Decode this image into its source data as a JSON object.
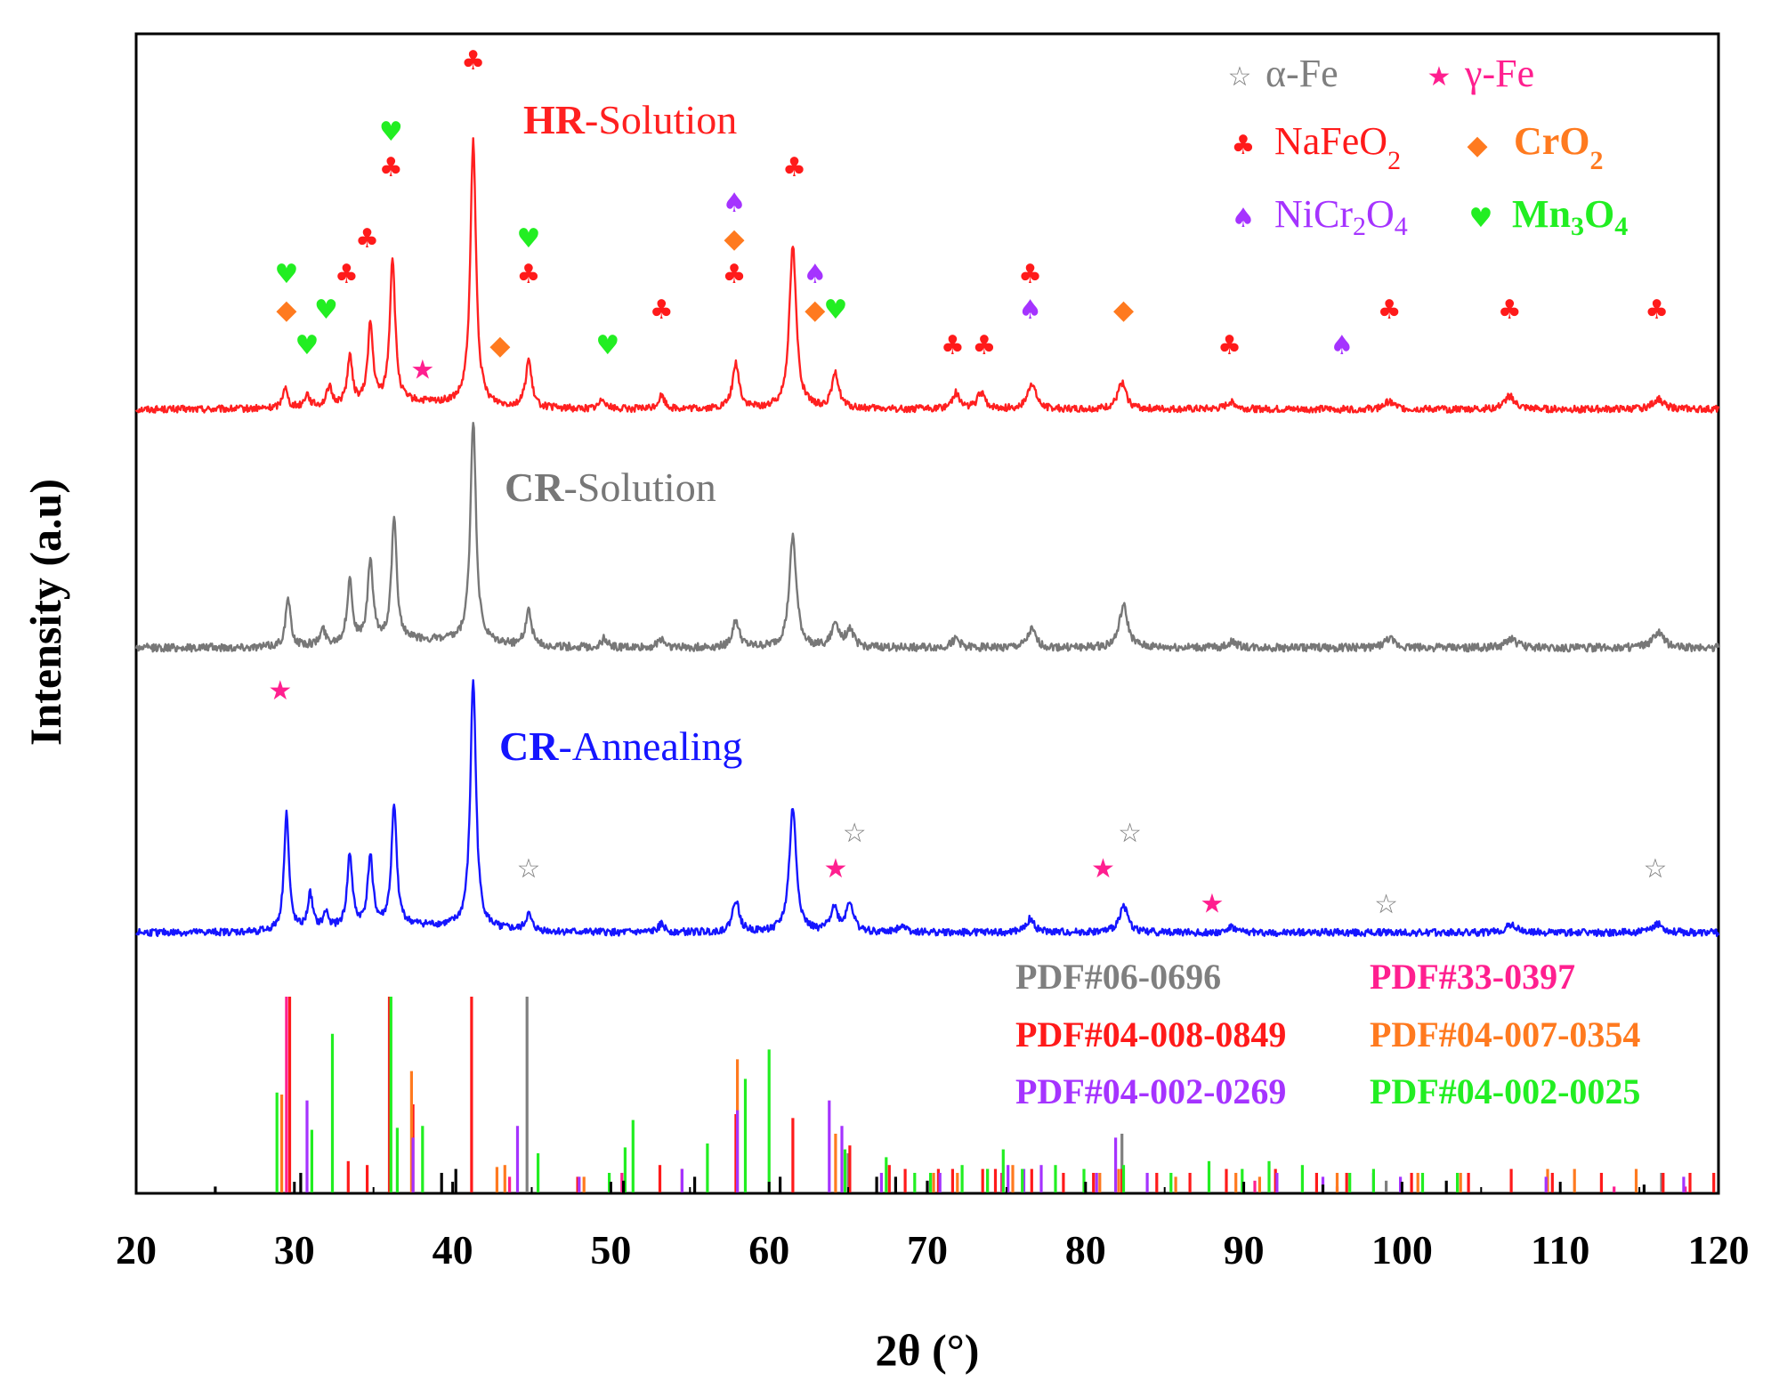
{
  "chart_data": {
    "type": "line",
    "xlabel": "2θ (°)",
    "ylabel": "Intensity (a.u)",
    "xlim": [
      20,
      120
    ],
    "xticks": [
      20,
      30,
      40,
      50,
      60,
      70,
      80,
      90,
      100,
      110,
      120
    ],
    "grid": false,
    "colors": {
      "alpha_fe": "#7f7f7f",
      "gamma_fe": "#ff1f8f",
      "nafeo2": "#ff1a1a",
      "cro2": "#ff7a1f",
      "nicr2o4": "#a533ff",
      "mn3o4": "#22ee22",
      "hr_solution": "#ff2020",
      "cr_solution": "#777777",
      "cr_annealing": "#1515ff",
      "baseline_ticks": "#000000"
    },
    "series": [
      {
        "name": "HR-Solution",
        "label_bold": "HR",
        "label_rest": "-Solution",
        "color": "#ff2020",
        "baseline": 0,
        "noise": 0.6,
        "peaks": [
          [
            29.4,
            8
          ],
          [
            30.8,
            5
          ],
          [
            32.2,
            7
          ],
          [
            33.5,
            18
          ],
          [
            34.8,
            30
          ],
          [
            36.2,
            55
          ],
          [
            41.3,
            100
          ],
          [
            44.8,
            18
          ],
          [
            49.5,
            4
          ],
          [
            53.2,
            5
          ],
          [
            57.9,
            17
          ],
          [
            61.5,
            62
          ],
          [
            64.2,
            13
          ],
          [
            71.8,
            6
          ],
          [
            73.4,
            6
          ],
          [
            76.6,
            10
          ],
          [
            82.3,
            10
          ],
          [
            89.2,
            3
          ],
          [
            99.2,
            3
          ],
          [
            106.8,
            5
          ],
          [
            116.2,
            4
          ]
        ]
      },
      {
        "name": "CR-Solution",
        "label_bold": "CR",
        "label_rest": "-Solution",
        "color": "#777777",
        "baseline": 0,
        "noise": 0.6,
        "peaks": [
          [
            29.6,
            16
          ],
          [
            31.8,
            5
          ],
          [
            33.5,
            21
          ],
          [
            34.8,
            27
          ],
          [
            36.3,
            40
          ],
          [
            41.3,
            74
          ],
          [
            44.8,
            12
          ],
          [
            49.6,
            3
          ],
          [
            53.2,
            3
          ],
          [
            57.9,
            9
          ],
          [
            61.5,
            37
          ],
          [
            64.2,
            8
          ],
          [
            65.1,
            6
          ],
          [
            71.8,
            3
          ],
          [
            76.6,
            6
          ],
          [
            82.4,
            14
          ],
          [
            89.3,
            2
          ],
          [
            99.2,
            3
          ],
          [
            106.9,
            3
          ],
          [
            116.2,
            5
          ]
        ]
      },
      {
        "name": "CR-Annealing",
        "label_bold": "CR",
        "label_rest": "-Annealing",
        "color": "#1515ff",
        "baseline": 0,
        "noise": 0.6,
        "peaks": [
          [
            29.5,
            44
          ],
          [
            31.0,
            13
          ],
          [
            32.0,
            6
          ],
          [
            33.5,
            27
          ],
          [
            34.8,
            26
          ],
          [
            36.3,
            44
          ],
          [
            41.3,
            92
          ],
          [
            44.8,
            6
          ],
          [
            53.2,
            3
          ],
          [
            57.9,
            12
          ],
          [
            61.5,
            46
          ],
          [
            64.1,
            9
          ],
          [
            65.1,
            11
          ],
          [
            68.4,
            3
          ],
          [
            76.5,
            5
          ],
          [
            82.4,
            10
          ],
          [
            89.2,
            2
          ],
          [
            106.9,
            3
          ],
          [
            116.2,
            3
          ]
        ]
      }
    ],
    "legend": {
      "placement": "top-right",
      "entries": [
        {
          "symbol": "☆",
          "label": "α-Fe",
          "color": "#7f7f7f",
          "bold": false
        },
        {
          "symbol": "★",
          "label": "γ-Fe",
          "color": "#ff1f8f",
          "bold": false
        },
        {
          "symbol": "♣",
          "label": "NaFeO2",
          "main": "NaFeO",
          "sub": "2",
          "rest": "",
          "color": "#ff1a1a",
          "bold": false
        },
        {
          "symbol": "◆",
          "label": "CrO2",
          "main": "CrO",
          "sub": "2",
          "rest": "",
          "color": "#ff7a1f",
          "bold": true
        },
        {
          "symbol": "♠",
          "label": "NiCr2O4",
          "main": "NiCr",
          "sub": "2",
          "rest": "O",
          "sub2": "4",
          "color": "#a533ff",
          "bold": false
        },
        {
          "symbol": "♥",
          "label": "Mn3O4",
          "main": "Mn",
          "sub": "3",
          "rest": "O",
          "sub2": "4",
          "color": "#22ee22",
          "bold": true
        }
      ]
    },
    "markers": [
      {
        "series": 0,
        "phase": "mn3o4",
        "x": 29.5,
        "level": 3
      },
      {
        "series": 0,
        "phase": "cro2",
        "x": 29.5,
        "level": 2
      },
      {
        "series": 0,
        "phase": "mn3o4",
        "x": 30.8,
        "level": 1
      },
      {
        "series": 0,
        "phase": "mn3o4",
        "x": 32.0,
        "level": 2
      },
      {
        "series": 0,
        "phase": "nafeo2",
        "x": 33.3,
        "level": 3
      },
      {
        "series": 0,
        "phase": "nafeo2",
        "x": 34.6,
        "level": 4
      },
      {
        "series": 0,
        "phase": "nafeo2",
        "x": 36.1,
        "level": 6
      },
      {
        "series": 0,
        "phase": "mn3o4",
        "x": 36.1,
        "level": 7
      },
      {
        "series": 0,
        "phase": "gamma_fe",
        "x": 38.1,
        "level": 0
      },
      {
        "series": 0,
        "phase": "nafeo2",
        "x": 41.3,
        "level": 9
      },
      {
        "series": 0,
        "phase": "cro2",
        "x": 43.0,
        "level": 1
      },
      {
        "series": 0,
        "phase": "nafeo2",
        "x": 44.8,
        "level": 3
      },
      {
        "series": 0,
        "phase": "mn3o4",
        "x": 44.8,
        "level": 4
      },
      {
        "series": 0,
        "phase": "mn3o4",
        "x": 49.8,
        "level": 1
      },
      {
        "series": 0,
        "phase": "nafeo2",
        "x": 53.2,
        "level": 2
      },
      {
        "series": 0,
        "phase": "nafeo2",
        "x": 57.8,
        "level": 3
      },
      {
        "series": 0,
        "phase": "cro2",
        "x": 57.8,
        "level": 4
      },
      {
        "series": 0,
        "phase": "nicr2o4",
        "x": 57.8,
        "level": 5
      },
      {
        "series": 0,
        "phase": "nafeo2",
        "x": 61.6,
        "level": 6
      },
      {
        "series": 0,
        "phase": "cro2",
        "x": 62.9,
        "level": 2
      },
      {
        "series": 0,
        "phase": "nicr2o4",
        "x": 62.9,
        "level": 3
      },
      {
        "series": 0,
        "phase": "mn3o4",
        "x": 64.2,
        "level": 2
      },
      {
        "series": 0,
        "phase": "nafeo2",
        "x": 71.6,
        "level": 1
      },
      {
        "series": 0,
        "phase": "nafeo2",
        "x": 73.6,
        "level": 1
      },
      {
        "series": 0,
        "phase": "nicr2o4",
        "x": 76.5,
        "level": 2
      },
      {
        "series": 0,
        "phase": "nafeo2",
        "x": 76.5,
        "level": 3
      },
      {
        "series": 0,
        "phase": "cro2",
        "x": 82.4,
        "level": 2
      },
      {
        "series": 0,
        "phase": "nafeo2",
        "x": 89.1,
        "level": 1
      },
      {
        "series": 0,
        "phase": "nicr2o4",
        "x": 96.2,
        "level": 1
      },
      {
        "series": 0,
        "phase": "nafeo2",
        "x": 99.2,
        "level": 2
      },
      {
        "series": 0,
        "phase": "nafeo2",
        "x": 106.8,
        "level": 2
      },
      {
        "series": 0,
        "phase": "nafeo2",
        "x": 116.1,
        "level": 2
      },
      {
        "series": 2,
        "phase": "gamma_fe",
        "x": 29.1,
        "level": 6
      },
      {
        "series": 2,
        "phase": "alpha_fe",
        "x": 44.8,
        "level": 1
      },
      {
        "series": 2,
        "phase": "gamma_fe",
        "x": 64.2,
        "level": 1
      },
      {
        "series": 2,
        "phase": "alpha_fe",
        "x": 65.4,
        "level": 2
      },
      {
        "series": 2,
        "phase": "gamma_fe",
        "x": 81.1,
        "level": 1
      },
      {
        "series": 2,
        "phase": "alpha_fe",
        "x": 82.8,
        "level": 2
      },
      {
        "series": 2,
        "phase": "gamma_fe",
        "x": 88.0,
        "level": 0
      },
      {
        "series": 2,
        "phase": "alpha_fe",
        "x": 99.0,
        "level": 0
      },
      {
        "series": 2,
        "phase": "alpha_fe",
        "x": 116.0,
        "level": 1
      }
    ],
    "reference_cards": [
      {
        "label": "PDF#06-0696",
        "color": "#7f7f7f",
        "lines": [
          [
            44.7,
            100
          ],
          [
            65.0,
            20
          ],
          [
            82.3,
            30
          ],
          [
            99.0,
            6
          ],
          [
            116.4,
            10
          ]
        ]
      },
      {
        "label": "PDF#33-0397",
        "color": "#ff1f8f",
        "lines": [
          [
            29.5,
            100
          ],
          [
            43.6,
            8
          ],
          [
            50.7,
            10
          ],
          [
            74.7,
            10
          ],
          [
            90.7,
            6
          ],
          [
            95.9,
            3
          ],
          [
            113.4,
            3
          ],
          [
            117.9,
            3
          ]
        ]
      },
      {
        "label": "PDF#04-008-0849",
        "color": "#ff1a1a",
        "lines": [
          [
            29.7,
            100
          ],
          [
            33.4,
            16
          ],
          [
            34.6,
            14
          ],
          [
            36.0,
            100
          ],
          [
            37.5,
            45
          ],
          [
            41.2,
            100
          ],
          [
            47.9,
            8
          ],
          [
            53.1,
            14
          ],
          [
            54.5,
            12
          ],
          [
            57.9,
            40
          ],
          [
            61.5,
            38
          ],
          [
            65.1,
            24
          ],
          [
            67.6,
            14
          ],
          [
            68.6,
            12
          ],
          [
            70.7,
            12
          ],
          [
            71.6,
            12
          ],
          [
            73.5,
            12
          ],
          [
            74.3,
            12
          ],
          [
            76.6,
            12
          ],
          [
            78.6,
            10
          ],
          [
            80.5,
            10
          ],
          [
            82.3,
            12
          ],
          [
            84.5,
            10
          ],
          [
            86.6,
            10
          ],
          [
            88.9,
            12
          ],
          [
            92.0,
            12
          ],
          [
            94.6,
            10
          ],
          [
            96.5,
            10
          ],
          [
            100.6,
            10
          ],
          [
            104.2,
            10
          ],
          [
            106.9,
            12
          ],
          [
            109.5,
            10
          ],
          [
            112.6,
            10
          ],
          [
            116.5,
            10
          ],
          [
            118.2,
            10
          ],
          [
            119.7,
            10
          ]
        ]
      },
      {
        "label": "PDF#04-007-0354",
        "color": "#ff7a1f",
        "lines": [
          [
            29.2,
            50
          ],
          [
            37.4,
            62
          ],
          [
            42.8,
            13
          ],
          [
            43.3,
            14
          ],
          [
            48.3,
            8
          ],
          [
            58.0,
            68
          ],
          [
            64.2,
            30
          ],
          [
            70.4,
            10
          ],
          [
            71.9,
            10
          ],
          [
            73.8,
            12
          ],
          [
            75.4,
            14
          ],
          [
            80.9,
            10
          ],
          [
            82.1,
            12
          ],
          [
            85.7,
            8
          ],
          [
            89.5,
            10
          ],
          [
            91.0,
            8
          ],
          [
            95.9,
            10
          ],
          [
            101.0,
            10
          ],
          [
            103.7,
            10
          ],
          [
            109.2,
            12
          ],
          [
            110.9,
            12
          ],
          [
            114.8,
            12
          ]
        ]
      },
      {
        "label": "PDF#04-002-0269",
        "color": "#a533ff",
        "lines": [
          [
            30.8,
            47
          ],
          [
            37.5,
            28
          ],
          [
            44.1,
            34
          ],
          [
            48.0,
            8
          ],
          [
            54.5,
            12
          ],
          [
            58.0,
            42
          ],
          [
            63.8,
            47
          ],
          [
            64.6,
            34
          ],
          [
            67.1,
            10
          ],
          [
            70.8,
            10
          ],
          [
            75.1,
            14
          ],
          [
            76.1,
            12
          ],
          [
            77.2,
            14
          ],
          [
            80.7,
            10
          ],
          [
            81.9,
            28
          ],
          [
            83.9,
            10
          ],
          [
            92.1,
            10
          ],
          [
            95.0,
            8
          ],
          [
            98.2,
            10
          ],
          [
            99.9,
            8
          ],
          [
            109.1,
            8
          ],
          [
            117.8,
            8
          ]
        ]
      },
      {
        "label": "PDF#04-002-0025",
        "color": "#22ee22",
        "lines": [
          [
            28.9,
            51
          ],
          [
            31.1,
            32
          ],
          [
            32.4,
            81
          ],
          [
            36.1,
            100
          ],
          [
            36.5,
            33
          ],
          [
            38.1,
            34
          ],
          [
            45.4,
            20
          ],
          [
            49.9,
            10
          ],
          [
            50.9,
            23
          ],
          [
            51.4,
            37
          ],
          [
            56.1,
            25
          ],
          [
            58.5,
            58
          ],
          [
            60.0,
            73
          ],
          [
            64.8,
            22
          ],
          [
            67.4,
            18
          ],
          [
            69.2,
            10
          ],
          [
            70.2,
            10
          ],
          [
            72.2,
            14
          ],
          [
            73.8,
            12
          ],
          [
            74.8,
            22
          ],
          [
            76.0,
            12
          ],
          [
            78.1,
            14
          ],
          [
            79.9,
            12
          ],
          [
            82.4,
            14
          ],
          [
            85.4,
            10
          ],
          [
            87.8,
            16
          ],
          [
            89.9,
            12
          ],
          [
            91.6,
            16
          ],
          [
            93.7,
            14
          ],
          [
            96.7,
            10
          ],
          [
            98.2,
            12
          ],
          [
            101.3,
            10
          ],
          [
            103.5,
            10
          ]
        ]
      },
      {
        "label": "",
        "color": "#000000",
        "lines": [
          [
            25.0,
            3
          ],
          [
            30.4,
            10
          ],
          [
            39.3,
            10
          ],
          [
            40.2,
            12
          ],
          [
            50.8,
            6
          ],
          [
            55.3,
            8
          ],
          [
            60.7,
            8
          ],
          [
            66.8,
            8
          ],
          [
            68.0,
            8
          ],
          [
            70.0,
            6
          ],
          [
            95.0,
            4
          ],
          [
            102.8,
            6
          ],
          [
            115.3,
            4
          ]
        ]
      }
    ]
  }
}
